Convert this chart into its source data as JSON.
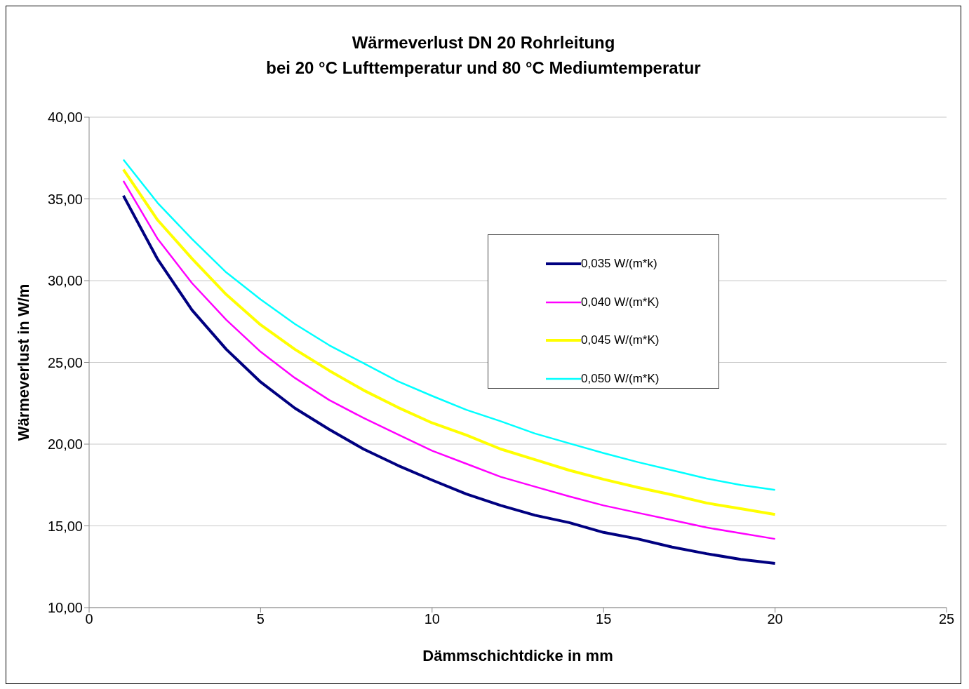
{
  "chart_data": {
    "type": "line",
    "title": "Wärmeverlust DN 20 Rohrleitung\nbei 20 °C Lufttemperatur und 80 °C Mediumtemperatur",
    "xlabel": "Dämmschichtdicke in mm",
    "ylabel": "Wärmeverlust in W/m",
    "x": [
      1,
      2,
      3,
      4,
      5,
      6,
      7,
      8,
      9,
      10,
      11,
      12,
      13,
      14,
      15,
      16,
      17,
      18,
      19,
      20
    ],
    "series": [
      {
        "name": "0,035 W/(m*k)",
        "color": "#000080",
        "values": [
          35.2,
          31.3,
          28.2,
          25.8,
          23.8,
          22.2,
          20.9,
          19.7,
          18.7,
          17.8,
          16.95,
          16.25,
          15.65,
          15.2,
          14.6,
          14.2,
          13.7,
          13.3,
          12.95,
          12.7
        ]
      },
      {
        "name": "0,040 W/(m*K)",
        "color": "#ff00ff",
        "values": [
          36.1,
          32.55,
          29.85,
          27.6,
          25.65,
          24.05,
          22.7,
          21.6,
          20.6,
          19.6,
          18.8,
          18.0,
          17.4,
          16.8,
          16.25,
          15.8,
          15.35,
          14.9,
          14.55,
          14.2
        ]
      },
      {
        "name": "0,045 W/(m*K)",
        "color": "#ffff00",
        "values": [
          36.8,
          33.7,
          31.35,
          29.15,
          27.3,
          25.8,
          24.5,
          23.3,
          22.25,
          21.3,
          20.55,
          19.7,
          19.05,
          18.4,
          17.85,
          17.35,
          16.9,
          16.4,
          16.05,
          15.7
        ]
      },
      {
        "name": "0,050 W/(m*K)",
        "color": "#00ffff",
        "values": [
          37.4,
          34.75,
          32.55,
          30.5,
          28.85,
          27.35,
          26.05,
          24.95,
          23.85,
          22.95,
          22.1,
          21.4,
          20.65,
          20.05,
          19.45,
          18.9,
          18.4,
          17.9,
          17.5,
          17.2
        ]
      }
    ],
    "xlim": [
      0,
      25
    ],
    "xticks": [
      0,
      5,
      10,
      15,
      20,
      25
    ],
    "ylim": [
      10,
      40
    ],
    "yticks": [
      {
        "value": 10,
        "label": "10,00"
      },
      {
        "value": 15,
        "label": "15,00"
      },
      {
        "value": 20,
        "label": "20,00"
      },
      {
        "value": 25,
        "label": "25,00"
      },
      {
        "value": 30,
        "label": "30,00"
      },
      {
        "value": 35,
        "label": "35,00"
      },
      {
        "value": 40,
        "label": "40,00"
      }
    ],
    "grid": "y",
    "legend": "right",
    "marker": "none",
    "line_style": "solid"
  }
}
